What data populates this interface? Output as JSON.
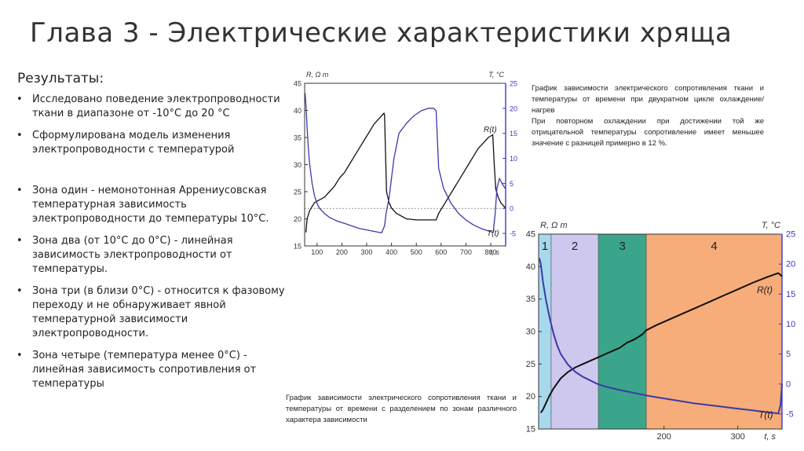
{
  "slide": {
    "title": "Глава 3 - Электрические характеристики хряща",
    "results_heading": "Результаты:",
    "bullets": [
      "Исследовано поведение электропроводности ткани в диапазоне от -10°C до 20 °C",
      "Сформулирована модель изменения электропроводности с температурой",
      "Зона один - немонотонная Аррениусовская температурная зависимость электропроводности до температуры 10°C.",
      "Зона два (от 10°C до 0°C) - линейная зависимость электропроводности от температуры.",
      "Зона три (в близи 0°C) - относится к фазовому переходу и не обнаруживает явной температурной зависимости электропроводности.",
      "Зона четыре (температура менее 0°C) - линейная зависимость сопротивления от температуры"
    ],
    "caption_top": "График зависимости электрического сопротивления ткани и температуры от времени при двукратном цикле охлаждение/нагрев\nПри повторном охлаждении при достижении той же отрицательной температуры сопротивление имеет меньшее значение с разницей примерно в 12 %.",
    "caption_bottom": "График зависимости электрического сопротивления ткани и температуры от времени с разделением по зонам различного характера зависимости"
  },
  "colors": {
    "resistance_line": "#111111",
    "temperature_line": "#3a3aa8",
    "right_axis": "#3a3ad0",
    "zone1": "#a8d8ec",
    "zone2": "#cfc8ee",
    "zone3": "#3aa58a",
    "zone4": "#f7ad7a"
  },
  "chart_data": [
    {
      "type": "line",
      "left_axis_label": "R, Ω m",
      "right_axis_label": "T, °C",
      "x_axis_label": "t, s",
      "xlim": [
        50,
        860
      ],
      "ylim": [
        15,
        45
      ],
      "y2lim": [
        -7.5,
        25
      ],
      "x_ticks": [
        100,
        200,
        300,
        400,
        500,
        600,
        700,
        800
      ],
      "y_ticks": [
        15,
        20,
        25,
        30,
        35,
        40,
        45
      ],
      "y2_ticks": [
        -5,
        0,
        5,
        10,
        15,
        20,
        25
      ],
      "reference_line_T": 0,
      "series": [
        {
          "name": "R(t)",
          "axis": "left",
          "x": [
            55,
            60,
            70,
            90,
            110,
            130,
            150,
            170,
            190,
            210,
            230,
            250,
            270,
            290,
            310,
            330,
            350,
            370,
            372,
            380,
            390,
            400,
            420,
            440,
            460,
            500,
            540,
            580,
            590,
            610,
            630,
            650,
            670,
            690,
            710,
            730,
            750,
            770,
            790,
            808,
            814,
            820,
            830,
            840,
            850,
            858
          ],
          "y": [
            17.5,
            20,
            21.5,
            23,
            23.5,
            24,
            25,
            26,
            27.5,
            28.5,
            30,
            31.5,
            33,
            34.5,
            36,
            37.5,
            38.5,
            39.5,
            39,
            25,
            23,
            22,
            21,
            20.5,
            20,
            19.8,
            19.8,
            19.8,
            21,
            22.5,
            24,
            25.5,
            27,
            28.5,
            30,
            31.5,
            33,
            34,
            35,
            35.5,
            30,
            25.5,
            24,
            23,
            22.5,
            22
          ]
        },
        {
          "name": "T(t)",
          "axis": "right",
          "x": [
            52,
            56,
            60,
            65,
            70,
            80,
            90,
            100,
            110,
            130,
            150,
            180,
            210,
            240,
            270,
            300,
            330,
            360,
            372,
            378,
            390,
            400,
            410,
            430,
            460,
            490,
            520,
            550,
            570,
            580,
            590,
            610,
            640,
            670,
            700,
            730,
            760,
            790,
            810,
            818,
            825,
            835,
            845,
            858
          ],
          "y": [
            23,
            20,
            16,
            12,
            9,
            5,
            2.5,
            1,
            0,
            -1,
            -1.8,
            -2.5,
            -3,
            -3.5,
            -4,
            -4.3,
            -4.6,
            -4.9,
            -3.5,
            -1,
            2,
            6,
            10,
            15,
            17,
            18.5,
            19.5,
            20,
            20,
            19.5,
            8,
            4,
            1,
            -1,
            -2.3,
            -3.3,
            -4,
            -4.5,
            -4.8,
            -1,
            4,
            6,
            5,
            4
          ]
        }
      ]
    },
    {
      "type": "line",
      "left_axis_label": "R, Ω m",
      "right_axis_label": "T, °C",
      "x_axis_label": "t, s",
      "xlim": [
        30,
        360
      ],
      "ylim": [
        15,
        45
      ],
      "y2lim": [
        -7.5,
        25
      ],
      "x_ticks": [
        200,
        300
      ],
      "y_ticks": [
        15,
        20,
        25,
        30,
        35,
        40,
        45
      ],
      "y2_ticks": [
        -5,
        0,
        5,
        10,
        15,
        20,
        25
      ],
      "zones": [
        {
          "label": "1",
          "from": 30,
          "to": 47
        },
        {
          "label": "2",
          "from": 47,
          "to": 111
        },
        {
          "label": "3",
          "from": 111,
          "to": 176
        },
        {
          "label": "4",
          "from": 176,
          "to": 360
        }
      ],
      "series": [
        {
          "name": "R(t)",
          "axis": "left",
          "x": [
            33,
            36,
            40,
            45,
            50,
            55,
            60,
            70,
            80,
            90,
            100,
            110,
            120,
            130,
            140,
            150,
            160,
            170,
            176,
            190,
            200,
            220,
            240,
            260,
            280,
            300,
            320,
            340,
            355,
            360
          ],
          "y": [
            17.5,
            18,
            19,
            20.2,
            21.2,
            22,
            22.8,
            23.8,
            24.5,
            25,
            25.5,
            26,
            26.5,
            27,
            27.5,
            28.3,
            28.8,
            29.5,
            30.2,
            31,
            31.5,
            32.5,
            33.5,
            34.5,
            35.5,
            36.5,
            37.5,
            38.4,
            39,
            38.5
          ]
        },
        {
          "name": "T(t)",
          "axis": "right",
          "x": [
            31,
            33,
            36,
            40,
            45,
            50,
            55,
            60,
            70,
            80,
            90,
            100,
            110,
            120,
            140,
            160,
            180,
            200,
            220,
            240,
            260,
            280,
            300,
            320,
            340,
            355,
            358,
            360
          ],
          "y": [
            21,
            20,
            17,
            14,
            11,
            8.5,
            6.5,
            5,
            3.2,
            2,
            1.2,
            0.6,
            0,
            -0.4,
            -1,
            -1.5,
            -2,
            -2.4,
            -2.8,
            -3.2,
            -3.5,
            -3.8,
            -4.1,
            -4.4,
            -4.7,
            -4.9,
            -3.5,
            0
          ]
        }
      ]
    }
  ]
}
